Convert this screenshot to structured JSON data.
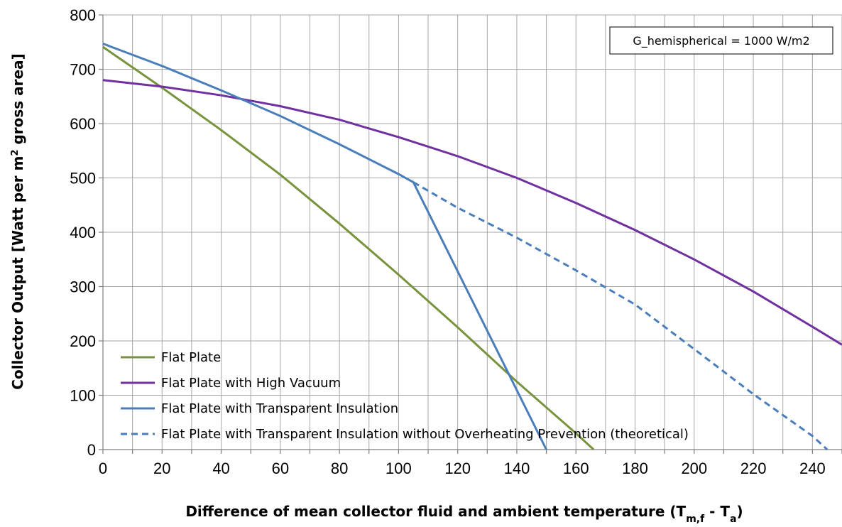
{
  "chart_data": {
    "type": "line",
    "title": "",
    "xlabel": "Difference of mean collector fluid and ambient temperature  (T",
    "xlabel_sub1": "m,f",
    "xlabel_mid": " - T",
    "xlabel_sub2": "a",
    "xlabel_end": ")",
    "ylabel": "Collector Output [Watt per m",
    "ylabel_sup": "2",
    "ylabel_end": " gross area]",
    "xlim": [
      0,
      250
    ],
    "ylim": [
      0,
      800
    ],
    "xticks": [
      0,
      20,
      40,
      60,
      80,
      100,
      120,
      140,
      160,
      180,
      200,
      220,
      240
    ],
    "yticks": [
      0,
      100,
      200,
      300,
      400,
      500,
      600,
      700,
      800
    ],
    "minor_x_step": 10,
    "grid": true,
    "legend_position": "bottom-left",
    "annotation": "G_hemispherical = 1000 W/m2",
    "series": [
      {
        "name": "Flat Plate",
        "color": "#77933c",
        "dash": "solid",
        "points": [
          [
            0,
            741
          ],
          [
            20,
            666
          ],
          [
            40,
            588
          ],
          [
            60,
            506
          ],
          [
            80,
            416
          ],
          [
            100,
            322
          ],
          [
            120,
            225
          ],
          [
            140,
            125
          ],
          [
            160,
            30
          ],
          [
            166,
            0
          ]
        ]
      },
      {
        "name": "Flat Plate with High Vacuum",
        "color": "#7030a0",
        "dash": "solid",
        "points": [
          [
            0,
            680
          ],
          [
            20,
            668
          ],
          [
            40,
            652
          ],
          [
            60,
            632
          ],
          [
            80,
            607
          ],
          [
            100,
            575
          ],
          [
            120,
            540
          ],
          [
            140,
            500
          ],
          [
            160,
            454
          ],
          [
            180,
            404
          ],
          [
            200,
            350
          ],
          [
            220,
            291
          ],
          [
            240,
            226
          ],
          [
            250,
            193
          ]
        ]
      },
      {
        "name": "Flat Plate with Transparent Insulation",
        "color": "#4a7ebb",
        "dash": "solid",
        "points": [
          [
            0,
            747
          ],
          [
            20,
            706
          ],
          [
            40,
            661
          ],
          [
            60,
            614
          ],
          [
            80,
            562
          ],
          [
            100,
            507
          ],
          [
            105,
            492
          ],
          [
            150,
            0
          ]
        ]
      },
      {
        "name": "Flat Plate with Transparent Insulation without Overheating Prevention (theoretical)",
        "color": "#4a7ebb",
        "dash": "dashed",
        "points": [
          [
            105,
            492
          ],
          [
            120,
            445
          ],
          [
            140,
            390
          ],
          [
            160,
            330
          ],
          [
            180,
            267
          ],
          [
            200,
            185
          ],
          [
            220,
            102
          ],
          [
            240,
            25
          ],
          [
            245,
            0
          ]
        ]
      }
    ]
  }
}
